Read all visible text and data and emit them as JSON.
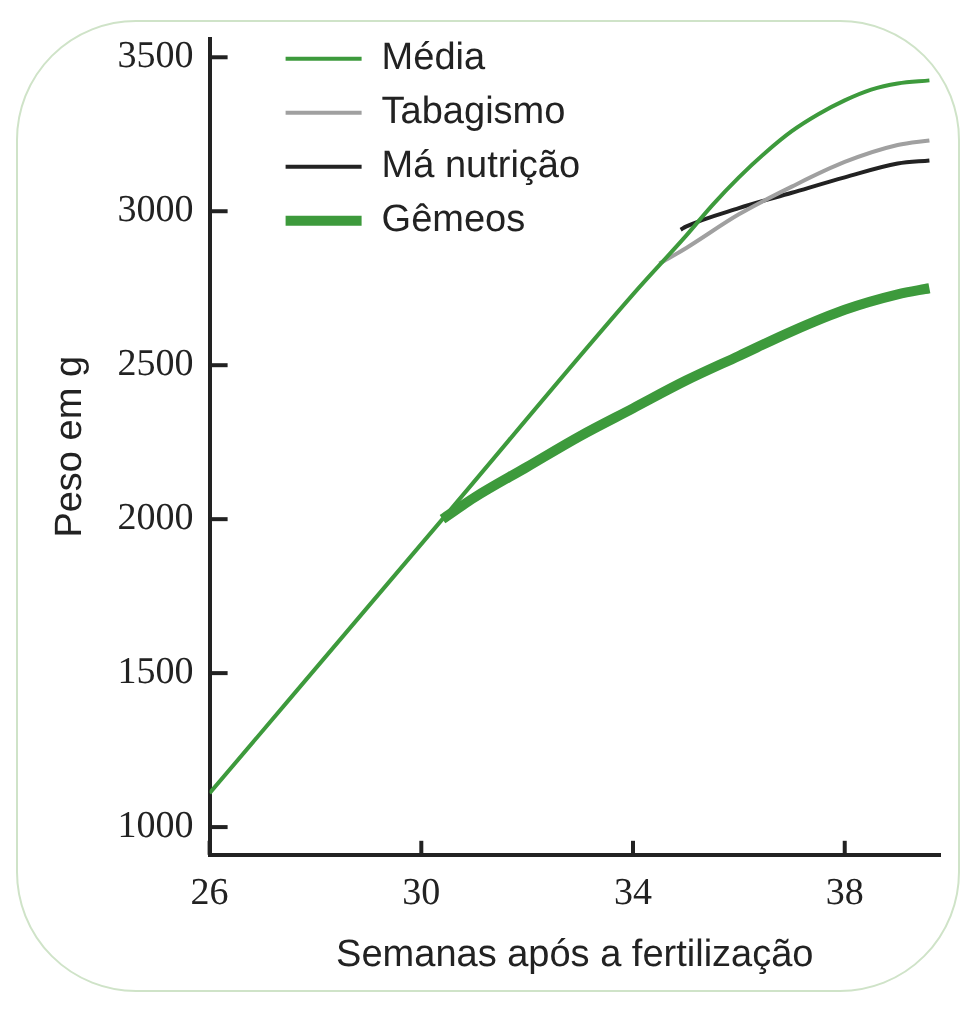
{
  "chart_data": {
    "type": "line",
    "xlabel": "Semanas após a fertilização",
    "ylabel": "Peso em g",
    "xlim": [
      26,
      39.8
    ],
    "xticks": [
      26,
      30,
      34,
      38
    ],
    "ylim": [
      910,
      3560
    ],
    "yticks": [
      1000,
      1500,
      2000,
      2500,
      3000,
      3500
    ],
    "grid": false,
    "legend": "top left",
    "marker": "none",
    "line_style": "solid",
    "series": [
      {
        "name": "Média",
        "color": "#3d9a3c",
        "x": [
          26,
          30.4,
          34,
          35,
          35.5,
          36,
          36.5,
          37,
          37.5,
          38,
          38.5,
          39,
          39.6
        ],
        "values": [
          1110,
          2000,
          2730,
          2920,
          3020,
          3110,
          3190,
          3260,
          3315,
          3360,
          3395,
          3415,
          3425
        ]
      },
      {
        "name": "Tabagismo",
        "color": "#a0a0a0",
        "x": [
          34.5,
          35,
          36,
          37,
          38,
          39,
          39.6
        ],
        "values": [
          2830,
          2880,
          2990,
          3080,
          3160,
          3215,
          3230
        ]
      },
      {
        "name": "Má nutrição",
        "color": "#222222",
        "x": [
          34.9,
          35,
          36,
          37,
          38,
          39,
          39.6
        ],
        "values": [
          2940,
          2950,
          3010,
          3060,
          3110,
          3155,
          3165
        ]
      },
      {
        "name": "Gêmeos",
        "color": "#3d9a3c",
        "x": [
          30.4,
          31,
          32,
          33,
          34,
          35,
          36,
          37,
          38,
          39,
          39.6
        ],
        "values": [
          2000,
          2070,
          2170,
          2270,
          2360,
          2450,
          2530,
          2610,
          2680,
          2730,
          2750
        ]
      }
    ]
  }
}
